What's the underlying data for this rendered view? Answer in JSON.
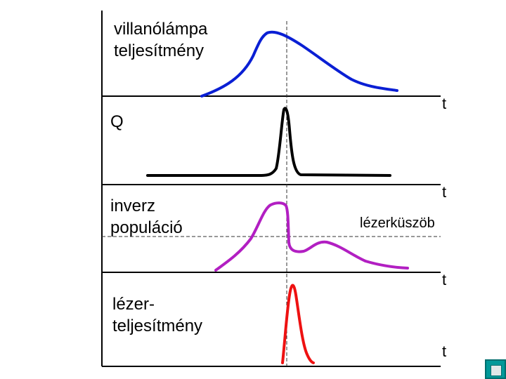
{
  "panels": [
    {
      "label_lines": [
        "villanólámpa",
        "teljesítmény"
      ],
      "axis_label": "t",
      "curve_color": "#0a1fd4"
    },
    {
      "label_lines": [
        "Q"
      ],
      "axis_label": "t",
      "curve_color": "#000000"
    },
    {
      "label_lines": [
        "inverz",
        "populáció"
      ],
      "axis_label": "t",
      "curve_color": "#b21fc2",
      "threshold_label": "lézerküszöb"
    },
    {
      "label_lines": [
        "lézer-",
        "teljesítmény"
      ],
      "axis_label": "t",
      "curve_color": "#ee1111"
    }
  ],
  "nav_icon": "slideshow-nav-icon"
}
